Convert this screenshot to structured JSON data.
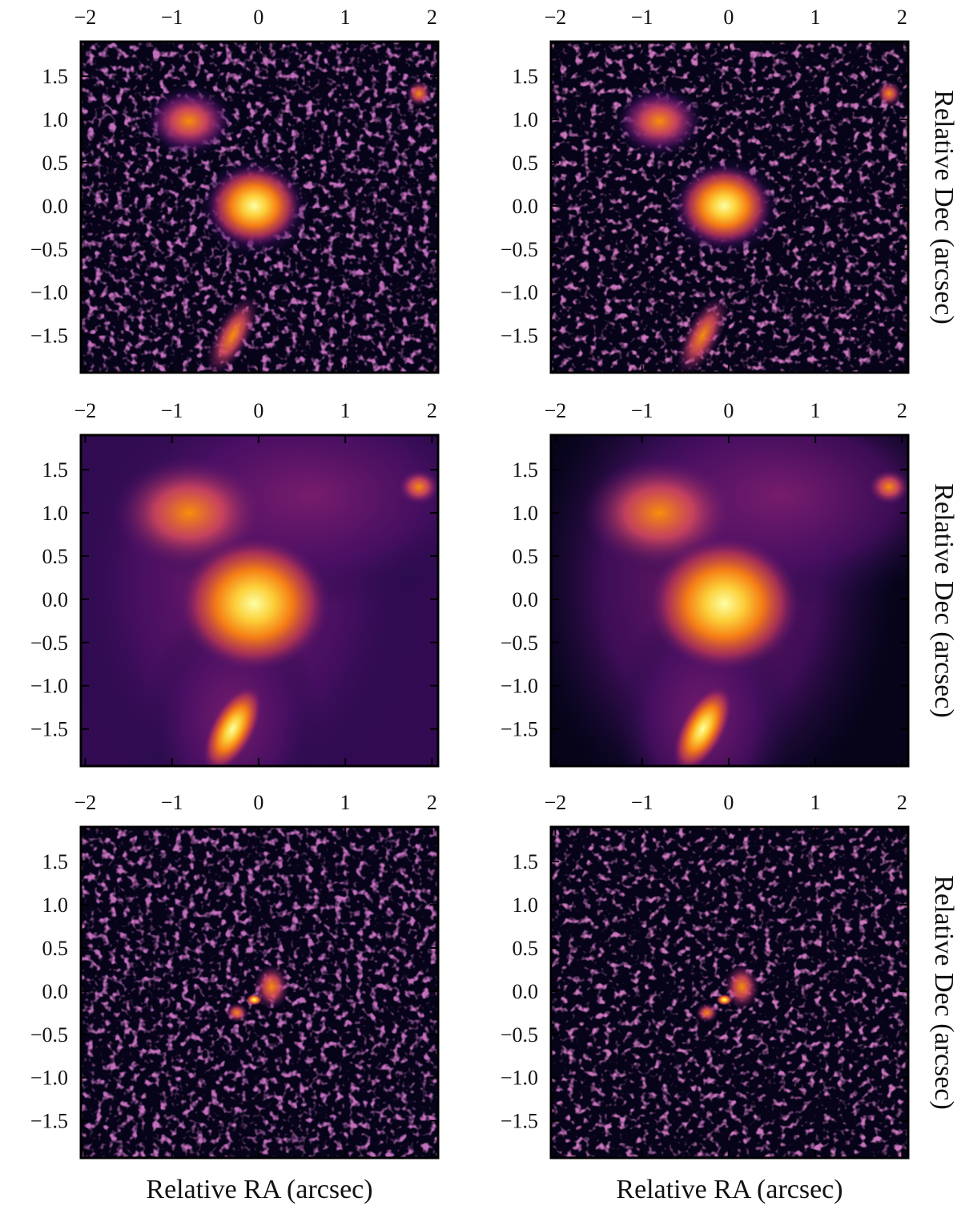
{
  "chart_data": [
    {
      "type": "image",
      "xlim": [
        -2.05,
        2.07
      ],
      "ylim": [
        -1.93,
        1.9
      ],
      "xticks": [
        {
          "value": -2,
          "label": "−2"
        },
        {
          "value": -1,
          "label": "−1"
        },
        0,
        1,
        2
      ],
      "yticks": [
        {
          "value": -1.5,
          "label": "−1.5"
        },
        {
          "value": -1.0,
          "label": "−1.0"
        },
        {
          "value": -0.5,
          "label": "−0.5"
        },
        {
          "value": 0,
          "label": "0.0"
        },
        0.5,
        {
          "value": 1.0,
          "label": "1.0"
        },
        1.5
      ]
    },
    {
      "type": "image",
      "ylabel": "Relative Dec (arcsec)",
      "xlim": [
        -2.05,
        2.07
      ],
      "ylim": [
        -1.93,
        1.9
      ],
      "xticks": [
        {
          "value": -2,
          "label": "−2"
        },
        {
          "value": -1,
          "label": "−1"
        },
        0,
        1,
        2
      ],
      "yticks": [
        {
          "value": -1.5,
          "label": "−1.5"
        },
        {
          "value": -1.0,
          "label": "−1.0"
        },
        {
          "value": -0.5,
          "label": "−0.5"
        },
        {
          "value": 0,
          "label": "0.0"
        },
        0.5,
        {
          "value": 1.0,
          "label": "1.0"
        },
        1.5
      ]
    },
    {
      "type": "image",
      "xlim": [
        -2.05,
        2.07
      ],
      "ylim": [
        -1.93,
        1.9
      ],
      "xticks": [
        {
          "value": -2,
          "label": "−2"
        },
        {
          "value": -1,
          "label": "−1"
        },
        0,
        1,
        2
      ],
      "yticks": [
        {
          "value": -1.5,
          "label": "−1.5"
        },
        {
          "value": -1.0,
          "label": "−1.0"
        },
        {
          "value": -0.5,
          "label": "−0.5"
        },
        {
          "value": 0,
          "label": "0.0"
        },
        0.5,
        {
          "value": 1.0,
          "label": "1.0"
        },
        1.5
      ]
    },
    {
      "type": "image",
      "ylabel": "Relative Dec (arcsec)",
      "xlim": [
        -2.05,
        2.07
      ],
      "ylim": [
        -1.93,
        1.9
      ],
      "xticks": [
        {
          "value": -2,
          "label": "−2"
        },
        {
          "value": -1,
          "label": "−1"
        },
        0,
        1,
        2
      ],
      "yticks": [
        {
          "value": -1.5,
          "label": "−1.5"
        },
        {
          "value": -1.0,
          "label": "−1.0"
        },
        {
          "value": -0.5,
          "label": "−0.5"
        },
        {
          "value": 0,
          "label": "0.0"
        },
        0.5,
        {
          "value": 1.0,
          "label": "1.0"
        },
        1.5
      ]
    },
    {
      "type": "image",
      "xlabel": "Relative RA (arcsec)",
      "xlim": [
        -2.05,
        2.07
      ],
      "ylim": [
        -1.93,
        1.9
      ],
      "xticks": [
        {
          "value": -2,
          "label": "−2"
        },
        {
          "value": -1,
          "label": "−1"
        },
        0,
        1,
        2
      ],
      "yticks": [
        {
          "value": -1.5,
          "label": "−1.5"
        },
        {
          "value": -1.0,
          "label": "−1.0"
        },
        {
          "value": -0.5,
          "label": "−0.5"
        },
        {
          "value": 0,
          "label": "0.0"
        },
        0.5,
        {
          "value": 1.0,
          "label": "1.0"
        },
        1.5
      ]
    },
    {
      "type": "image",
      "xlabel": "Relative RA (arcsec)",
      "ylabel": "Relative Dec (arcsec)",
      "xlim": [
        -2.05,
        2.07
      ],
      "ylim": [
        -1.93,
        1.9
      ],
      "xticks": [
        {
          "value": -2,
          "label": "−2"
        },
        {
          "value": -1,
          "label": "−1"
        },
        0,
        1,
        2
      ],
      "yticks": [
        {
          "value": -1.5,
          "label": "−1.5"
        },
        {
          "value": -1.0,
          "label": "−1.0"
        },
        {
          "value": -0.5,
          "label": "−0.5"
        },
        {
          "value": 0,
          "label": "0.0"
        },
        0.5,
        {
          "value": 1.0,
          "label": "1.0"
        },
        1.5
      ]
    }
  ]
}
